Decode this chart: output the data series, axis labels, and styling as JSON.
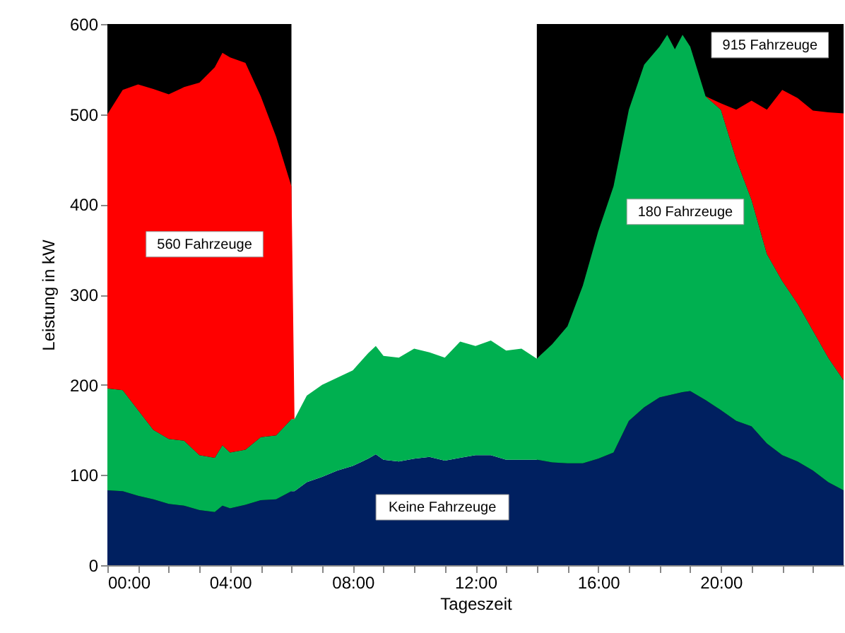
{
  "chart_data": {
    "type": "area",
    "stacked": true,
    "xlabel": "Tageszeit",
    "ylabel": "Leistung in kW",
    "x": [
      0,
      0.5,
      1,
      1.5,
      2,
      2.5,
      3,
      3.5,
      3.75,
      4,
      4.5,
      5,
      5.5,
      6,
      6.1,
      6.5,
      7,
      7.5,
      8,
      8.5,
      8.75,
      9,
      9.5,
      10,
      10.5,
      11,
      11.5,
      12,
      12.5,
      13,
      13.5,
      14,
      14.5,
      15,
      15.5,
      16,
      16.5,
      17,
      17.5,
      18,
      18.25,
      18.5,
      18.75,
      19,
      19.5,
      20,
      20.5,
      21,
      21.5,
      22,
      22.5,
      23,
      23.5,
      24
    ],
    "series": [
      {
        "color": "#002060",
        "values": [
          83,
          82,
          77,
          73,
          68,
          66,
          61,
          59,
          66,
          63,
          67,
          72,
          73,
          82,
          82,
          92,
          98,
          105,
          110,
          118,
          123,
          117,
          115,
          118,
          120,
          116,
          119,
          122,
          122,
          117,
          117,
          117,
          114,
          113,
          113,
          118,
          125,
          160,
          175,
          186,
          188,
          190,
          192,
          193,
          183,
          172,
          160,
          154,
          135,
          122,
          115,
          105,
          92,
          83
        ]
      },
      {
        "color": "#00b050",
        "values": [
          113,
          112,
          95,
          77,
          72,
          72,
          61,
          60,
          67,
          62,
          61,
          70,
          71,
          80,
          80,
          96,
          102,
          103,
          106,
          117,
          120,
          115,
          115,
          122,
          116,
          114,
          129,
          121,
          127,
          121,
          123,
          112,
          131,
          152,
          197,
          252,
          295,
          345,
          380,
          389,
          400,
          382,
          396,
          382,
          337,
          333,
          290,
          251,
          210,
          193,
          175,
          155,
          138,
          122
        ]
      },
      {
        "color": "#ff0000",
        "values": [
          304,
          333,
          361,
          378,
          382,
          392,
          413,
          433,
          435,
          438,
          429,
          378,
          331,
          258,
          0,
          0,
          0,
          0,
          0,
          0,
          0,
          0,
          0,
          0,
          0,
          0,
          0,
          0,
          0,
          0,
          0,
          0,
          0,
          0,
          0,
          0,
          0,
          0,
          0,
          0,
          0,
          0,
          0,
          0,
          0,
          7,
          55,
          110,
          160,
          212,
          228,
          244,
          272,
          296
        ]
      }
    ],
    "xlim": [
      0,
      24
    ],
    "xticks": [
      {
        "value": 0,
        "label": "00:00"
      },
      {
        "value": 1,
        "label": null
      },
      {
        "value": 2,
        "label": null
      },
      {
        "value": 3,
        "label": null
      },
      {
        "value": 4,
        "label": "04:00"
      },
      {
        "value": 5,
        "label": null
      },
      {
        "value": 6,
        "label": null
      },
      {
        "value": 7,
        "label": null
      },
      {
        "value": 8,
        "label": "08:00"
      },
      {
        "value": 9,
        "label": null
      },
      {
        "value": 10,
        "label": null
      },
      {
        "value": 11,
        "label": null
      },
      {
        "value": 12,
        "label": "12:00"
      },
      {
        "value": 13,
        "label": null
      },
      {
        "value": 14,
        "label": null
      },
      {
        "value": 15,
        "label": null
      },
      {
        "value": 16,
        "label": "16:00"
      },
      {
        "value": 17,
        "label": null
      },
      {
        "value": 18,
        "label": null
      },
      {
        "value": 19,
        "label": null
      },
      {
        "value": 20,
        "label": "20:00"
      },
      {
        "value": 21,
        "label": null
      },
      {
        "value": 22,
        "label": null
      },
      {
        "value": 23,
        "label": null
      }
    ],
    "ylim": [
      0,
      600
    ],
    "yticks": [
      0,
      100,
      200,
      300,
      400,
      500,
      600
    ],
    "bands": [
      {
        "axis": "x",
        "from": 0,
        "to": 6,
        "color": "#000000"
      },
      {
        "axis": "x",
        "from": 14,
        "to": 24,
        "color": "#000000"
      }
    ],
    "annotations": [
      "560 Fahrzeuge",
      "915 Fahrzeuge",
      "180 Fahrzeuge",
      "Keine Fahrzeuge"
    ]
  }
}
